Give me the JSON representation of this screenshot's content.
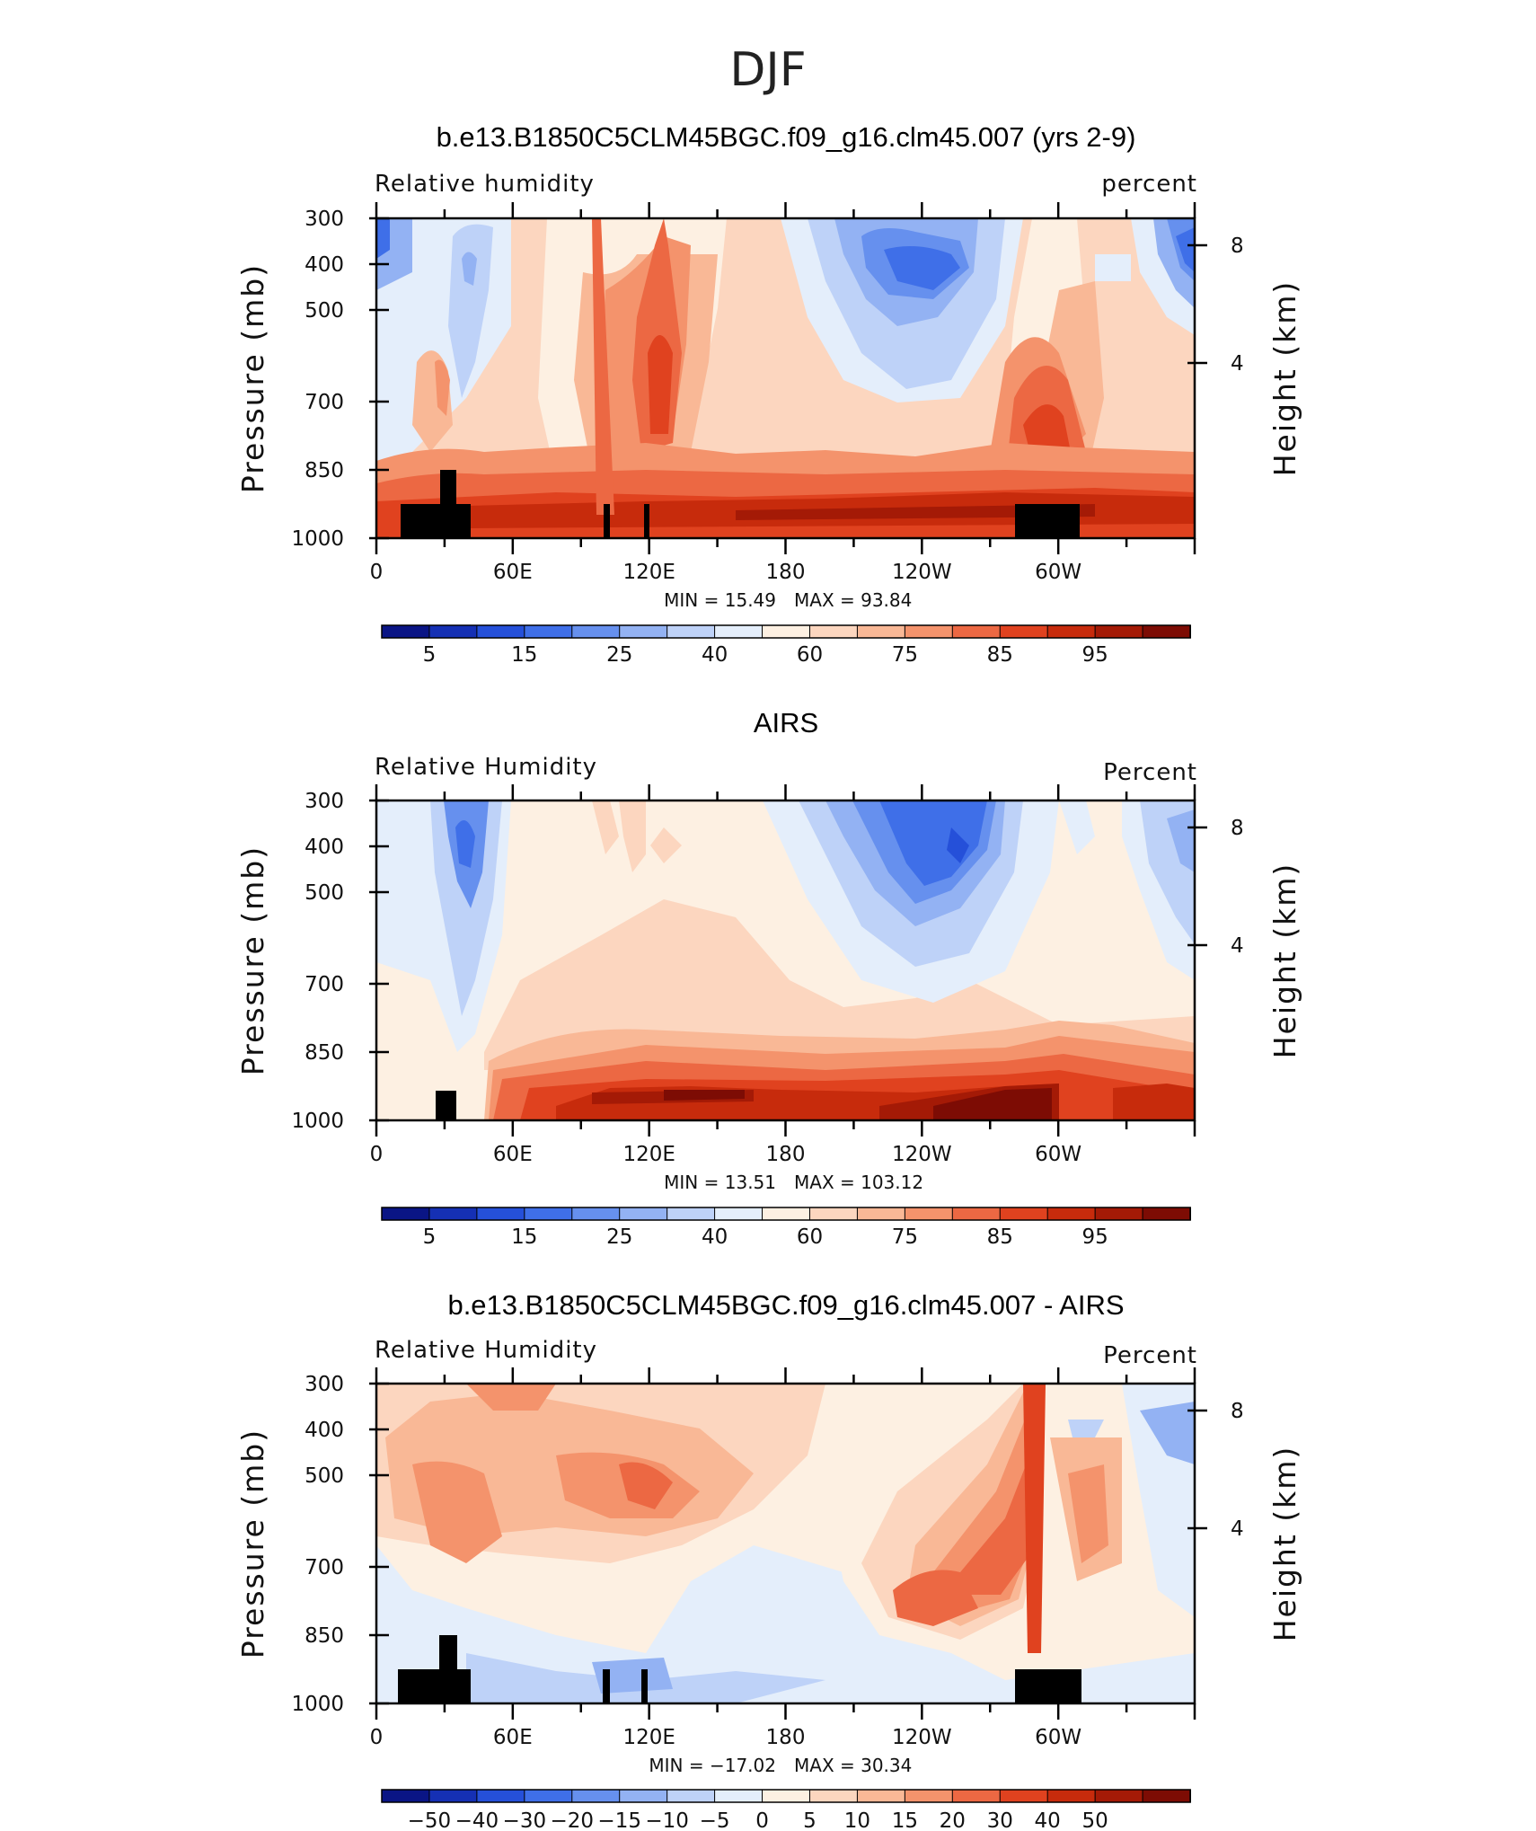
{
  "page_title": "DJF",
  "colorbar_absolute": {
    "colors": [
      "#0a1585",
      "#1530b4",
      "#2550d9",
      "#3f6fe8",
      "#6690ee",
      "#93b2f3",
      "#bed2f8",
      "#e4eefb",
      "#fdf0e2",
      "#fcd6bf",
      "#f9b896",
      "#f4936c",
      "#ec6843",
      "#e0421f",
      "#c72b0c",
      "#a41a06",
      "#7d0c04"
    ],
    "labels": [
      "5",
      "15",
      "25",
      "40",
      "60",
      "75",
      "85",
      "95"
    ]
  },
  "colorbar_diff": {
    "colors": [
      "#0a1585",
      "#1530b4",
      "#2550d9",
      "#3f6fe8",
      "#6690ee",
      "#93b2f3",
      "#bed2f8",
      "#e4eefb",
      "#fdf0e2",
      "#fcd6bf",
      "#f9b896",
      "#f4936c",
      "#ec6843",
      "#e0421f",
      "#c72b0c",
      "#a41a06",
      "#7d0c04"
    ],
    "labels": [
      "−50",
      "−40",
      "−30",
      "−20",
      "−15",
      "−10",
      "−5",
      "0",
      "5",
      "10",
      "15",
      "20",
      "30",
      "40",
      "50"
    ]
  },
  "chart_data": [
    {
      "type": "heatmap",
      "title": "b.e13.B1850C5CLM45BGC.f09_g16.clm45.007 (yrs 2-9)",
      "variable_label": "Relative humidity",
      "units_label": "percent",
      "ylabel": "Pressure (mb)",
      "ylabel_right": "Height (km)",
      "x_tick_labels": [
        "0",
        "60E",
        "120E",
        "180",
        "120W",
        "60W"
      ],
      "y_tick_labels": [
        "300",
        "400",
        "500",
        "700",
        "850",
        "1000"
      ],
      "right_tick_labels": [
        "8",
        "4"
      ],
      "ylim": [
        1000,
        300
      ],
      "min_label": "MIN =   15.49",
      "max_label": "MAX =   93.84",
      "min": 15.49,
      "max": 93.84,
      "colorbar": "absolute"
    },
    {
      "type": "heatmap",
      "title": "AIRS",
      "variable_label": "Relative Humidity",
      "units_label": "Percent",
      "ylabel": "Pressure (mb)",
      "ylabel_right": "Height (km)",
      "x_tick_labels": [
        "0",
        "60E",
        "120E",
        "180",
        "120W",
        "60W"
      ],
      "y_tick_labels": [
        "300",
        "400",
        "500",
        "700",
        "850",
        "1000"
      ],
      "right_tick_labels": [
        "8",
        "4"
      ],
      "ylim": [
        1000,
        300
      ],
      "min_label": "MIN =   13.51",
      "max_label": "MAX =  103.12",
      "min": 13.51,
      "max": 103.12,
      "colorbar": "absolute"
    },
    {
      "type": "heatmap",
      "title": "b.e13.B1850C5CLM45BGC.f09_g16.clm45.007 - AIRS",
      "variable_label": "Relative Humidity",
      "units_label": "Percent",
      "ylabel": "Pressure (mb)",
      "ylabel_right": "Height (km)",
      "x_tick_labels": [
        "0",
        "60E",
        "120E",
        "180",
        "120W",
        "60W"
      ],
      "y_tick_labels": [
        "300",
        "400",
        "500",
        "700",
        "850",
        "1000"
      ],
      "right_tick_labels": [
        "8",
        "4"
      ],
      "ylim": [
        1000,
        300
      ],
      "min_label": "MIN = −17.02",
      "max_label": "MAX =   30.34",
      "min": -17.02,
      "max": 30.34,
      "colorbar": "diff"
    }
  ]
}
